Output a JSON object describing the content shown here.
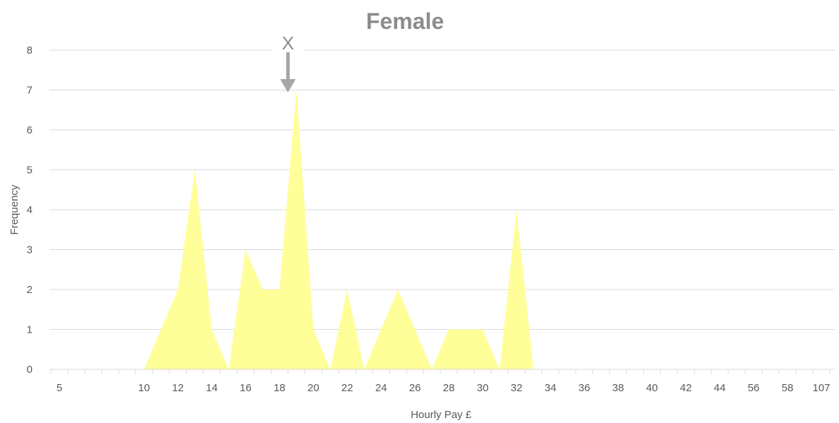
{
  "chart_data": {
    "type": "area",
    "title": "Female",
    "xlabel": "Hourly Pay £",
    "ylabel": "Frequency",
    "ylim": [
      0,
      8
    ],
    "yticks": [
      0,
      1,
      2,
      3,
      4,
      5,
      6,
      7,
      8
    ],
    "grid": true,
    "legend": "none",
    "categories": [
      "5",
      "6",
      "7",
      "8",
      "9",
      "10",
      "11",
      "12",
      "13",
      "14",
      "15",
      "16",
      "17",
      "18",
      "19",
      "20",
      "21",
      "22",
      "23",
      "24",
      "25",
      "26",
      "27",
      "28",
      "29",
      "30",
      "31",
      "32",
      "33",
      "34",
      "35",
      "36",
      "37",
      "38",
      "39",
      "40",
      "41",
      "42",
      "43",
      "44",
      "45",
      "56",
      "57",
      "58",
      "59",
      "107"
    ],
    "x_tick_labels_shown": [
      "5",
      "10",
      "12",
      "14",
      "16",
      "18",
      "20",
      "22",
      "24",
      "26",
      "28",
      "30",
      "32",
      "34",
      "36",
      "38",
      "40",
      "42",
      "44",
      "56",
      "58",
      "107"
    ],
    "values": [
      0,
      0,
      0,
      0,
      0,
      0,
      1,
      2,
      5,
      1,
      0,
      3,
      2,
      2,
      7,
      1,
      0,
      2,
      0,
      1,
      2,
      1,
      0,
      1,
      1,
      1,
      0,
      4,
      0,
      0,
      0,
      0,
      0,
      0,
      0,
      0,
      0,
      0,
      0,
      0,
      0,
      0,
      0,
      0,
      0,
      0
    ],
    "series_color": "#ffff99",
    "annotation": {
      "text": "X",
      "category": "19",
      "color": "#a6a6a6"
    }
  }
}
